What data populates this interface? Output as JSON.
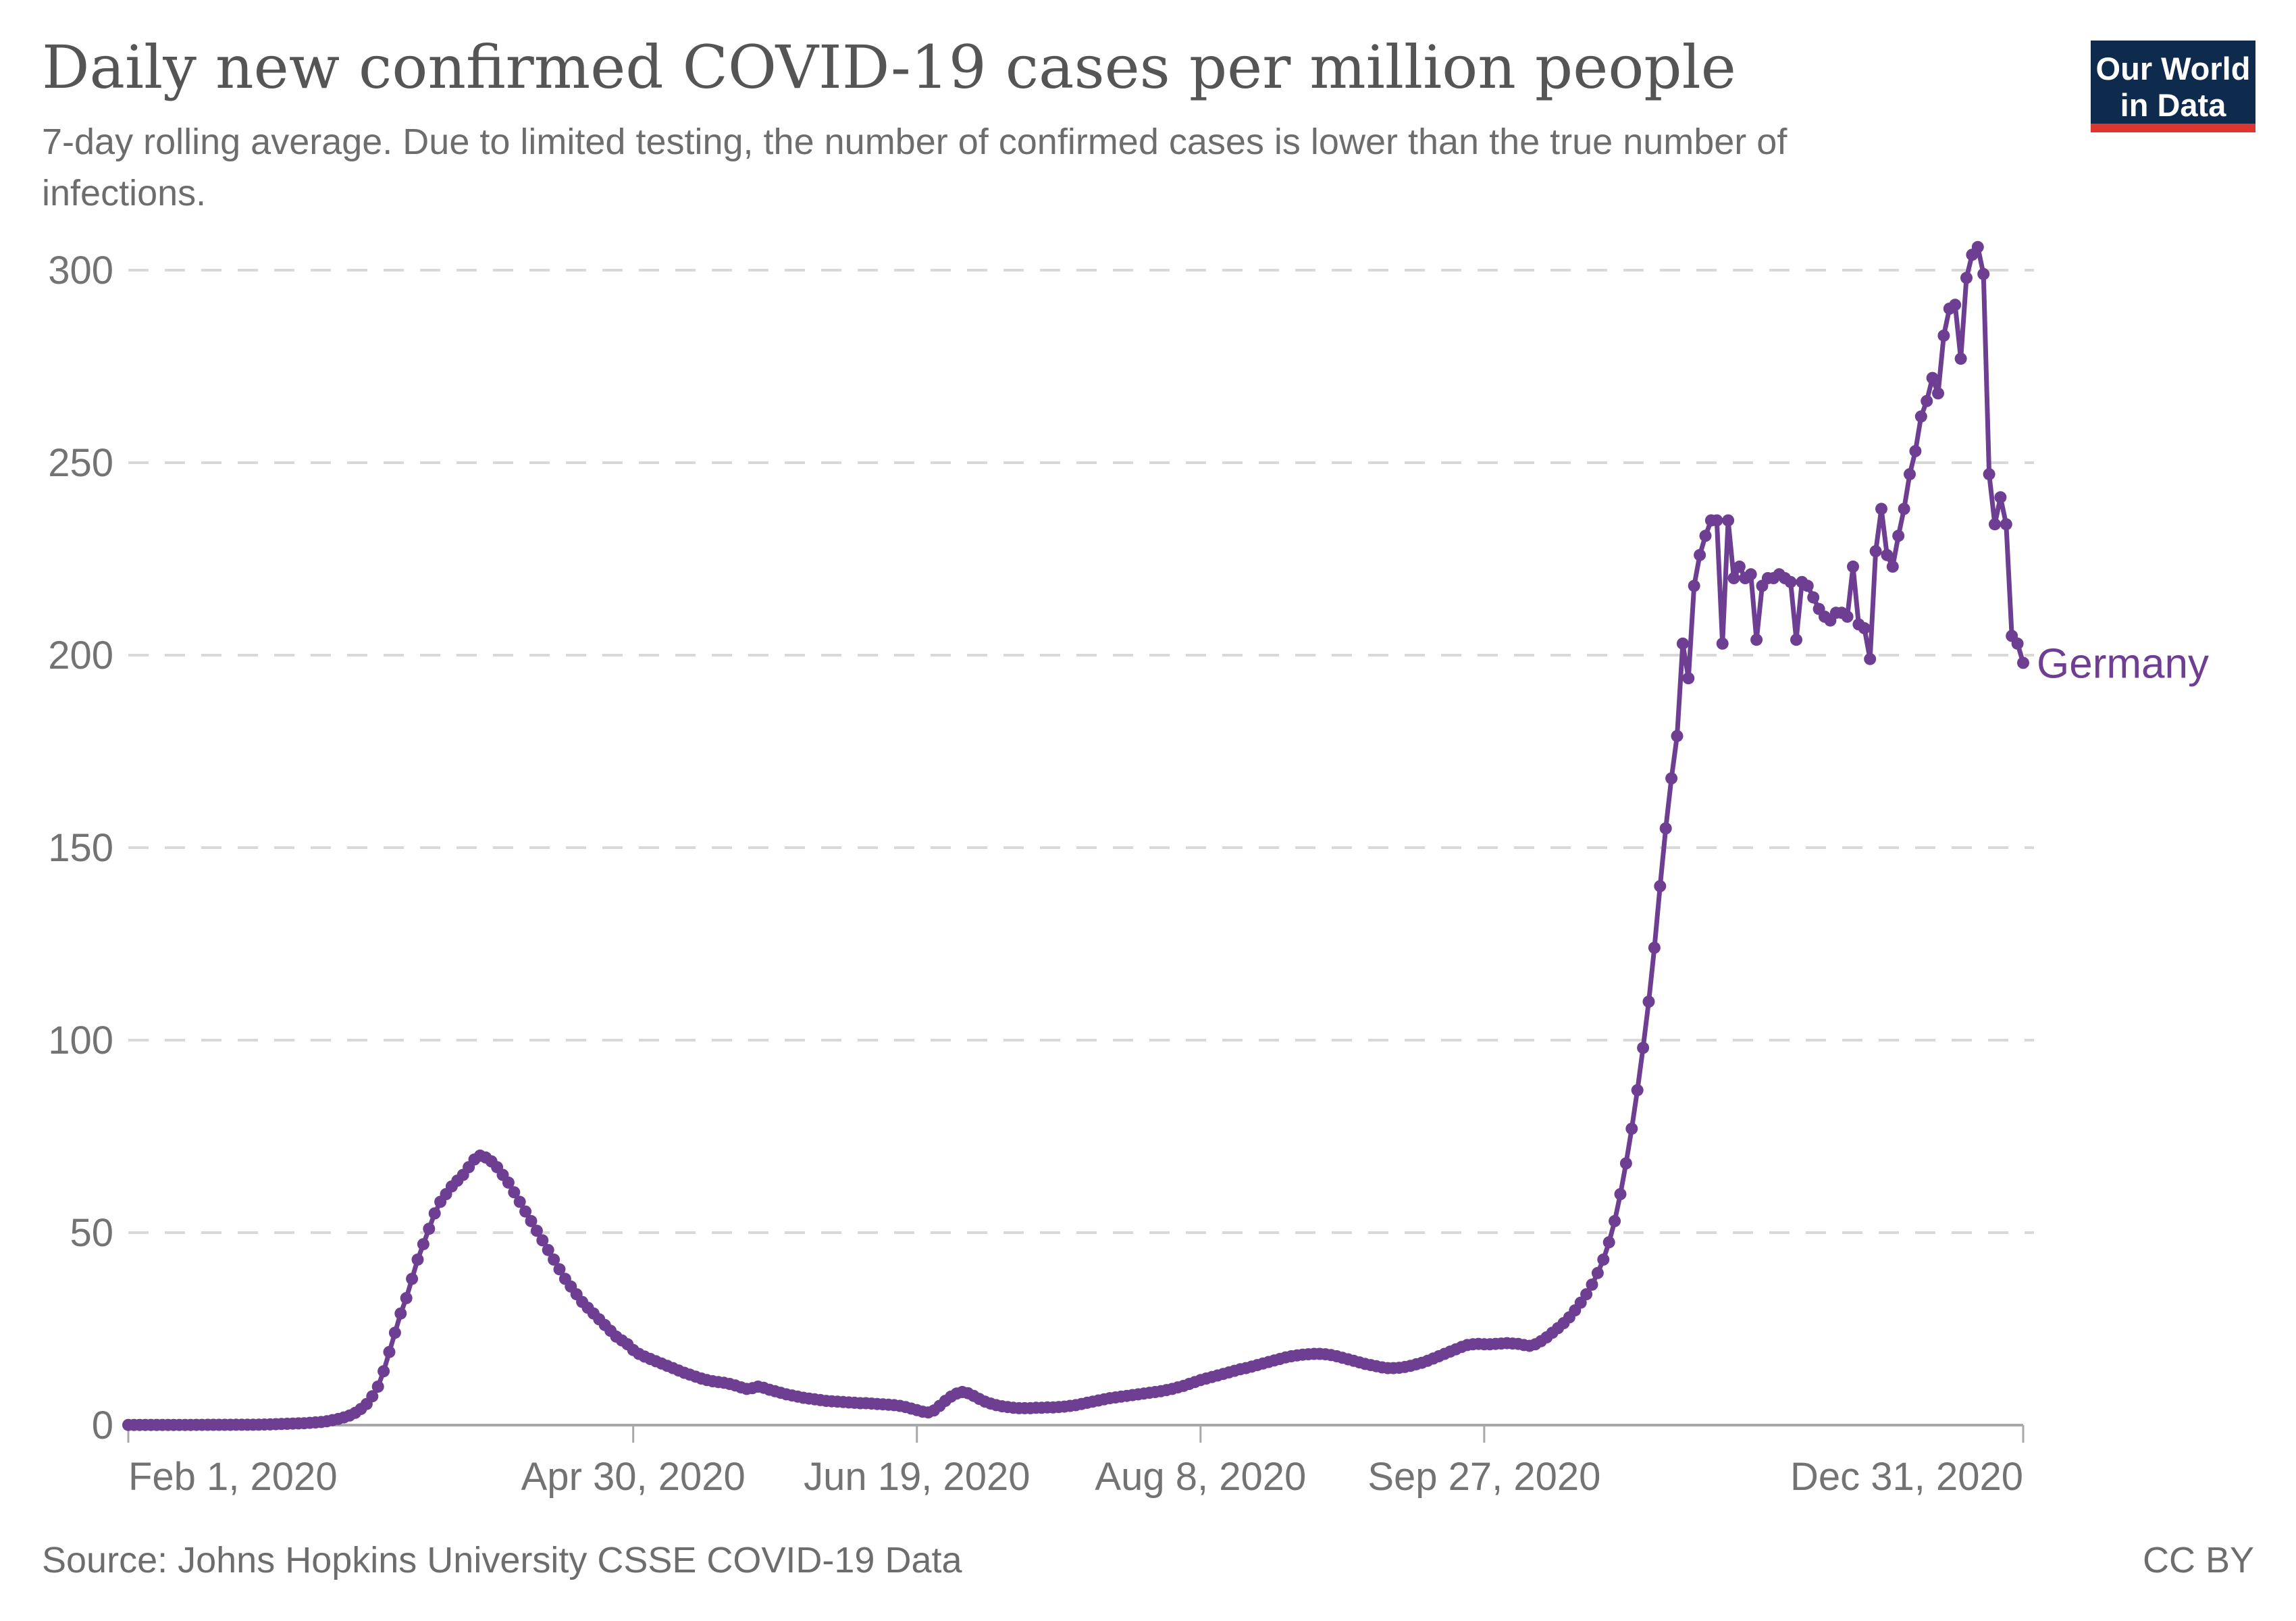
{
  "header": {
    "title": "Daily new confirmed COVID-19 cases per million people",
    "subtitle_line1": "7-day rolling average. Due to limited testing, the number of confirmed cases is lower than the true number of",
    "subtitle_line2": "infections.",
    "logo": {
      "line1": "Our World",
      "line2": "in Data",
      "bg_color": "#0e2a4d",
      "accent_color": "#dd362e"
    }
  },
  "footer": {
    "source": "Source: Johns Hopkins University CSSE COVID-19 Data",
    "license": "CC BY"
  },
  "chart_data": {
    "type": "line",
    "series_label": "Germany",
    "color": "#6d3e91",
    "start_date": "Feb 1, 2020",
    "end_date": "Dec 31, 2020",
    "x_start_day": 0,
    "x_end_day": 334,
    "x_tick_days": [
      0,
      89,
      139,
      189,
      239,
      334
    ],
    "x_tick_labels": [
      "Feb 1, 2020",
      "Apr 30, 2020",
      "Jun 19, 2020",
      "Aug 8, 2020",
      "Sep 27, 2020",
      "Dec 31, 2020"
    ],
    "y_ticks": [
      0,
      50,
      100,
      150,
      200,
      250,
      300
    ],
    "ylim": [
      0,
      300
    ],
    "grid": true,
    "legend_position": "end-of-line-label",
    "values": [
      0.05,
      0.05,
      0.05,
      0.05,
      0.05,
      0.05,
      0.05,
      0.05,
      0.05,
      0.05,
      0.06,
      0.06,
      0.07,
      0.07,
      0.08,
      0.08,
      0.08,
      0.09,
      0.09,
      0.1,
      0.1,
      0.1,
      0.1,
      0.12,
      0.15,
      0.2,
      0.25,
      0.3,
      0.35,
      0.4,
      0.45,
      0.5,
      0.6,
      0.7,
      0.8,
      1,
      1.3,
      1.6,
      2,
      2.5,
      3.2,
      4.2,
      5.5,
      7.5,
      10,
      14,
      19,
      24,
      29,
      33,
      38,
      43,
      47,
      51,
      55,
      58,
      60,
      62,
      63.5,
      65,
      67,
      69,
      70,
      69.5,
      68.5,
      67,
      65,
      63,
      60.5,
      58,
      55.5,
      53,
      50.5,
      48,
      45.5,
      43,
      40.5,
      38,
      36,
      34,
      32,
      30.5,
      29,
      27.5,
      26,
      24.5,
      23,
      22,
      21,
      19.5,
      18.5,
      17.8,
      17.2,
      16.6,
      16,
      15.4,
      14.8,
      14.2,
      13.6,
      13.1,
      12.6,
      12.1,
      11.7,
      11.4,
      11.2,
      11,
      10.7,
      10.3,
      9.8,
      9.4,
      9.6,
      10,
      9.7,
      9.2,
      8.8,
      8.4,
      8,
      7.7,
      7.4,
      7.1,
      6.9,
      6.7,
      6.5,
      6.3,
      6.2,
      6.1,
      6,
      5.9,
      5.8,
      5.7,
      5.7,
      5.6,
      5.5,
      5.4,
      5.3,
      5.2,
      5,
      4.7,
      4.3,
      3.9,
      3.5,
      3.3,
      3.8,
      5,
      6.3,
      7.4,
      8.2,
      8.6,
      8.3,
      7.6,
      6.8,
      6.1,
      5.6,
      5.2,
      4.9,
      4.7,
      4.5,
      4.4,
      4.4,
      4.4,
      4.5,
      4.5,
      4.6,
      4.6,
      4.7,
      4.8,
      5,
      5.2,
      5.5,
      5.8,
      6.1,
      6.4,
      6.7,
      7,
      7.2,
      7.4,
      7.6,
      7.8,
      8,
      8.2,
      8.4,
      8.6,
      8.8,
      9.1,
      9.4,
      9.8,
      10.2,
      10.7,
      11.2,
      11.7,
      12.1,
      12.5,
      12.9,
      13.3,
      13.7,
      14.1,
      14.5,
      14.8,
      15.2,
      15.6,
      16,
      16.4,
      16.8,
      17.2,
      17.6,
      17.9,
      18.1,
      18.3,
      18.4,
      18.5,
      18.5,
      18.4,
      18.2,
      17.9,
      17.5,
      17.1,
      16.7,
      16.3,
      15.9,
      15.6,
      15.3,
      15,
      14.8,
      14.8,
      14.9,
      15.1,
      15.4,
      15.8,
      16.2,
      16.7,
      17.3,
      17.9,
      18.5,
      19.1,
      19.7,
      20.3,
      20.8,
      21,
      21.1,
      21,
      21,
      21.1,
      21.2,
      21.3,
      21.2,
      21.1,
      20.8,
      20.6,
      21,
      21.8,
      22.8,
      24,
      25.2,
      26.5,
      28,
      29.8,
      31.8,
      34,
      36.5,
      39.5,
      43,
      47.5,
      53,
      60,
      68,
      77,
      87,
      98,
      110,
      124,
      140,
      155,
      168,
      179,
      203,
      194,
      218,
      226,
      231,
      235,
      235,
      203,
      235,
      220,
      223,
      220,
      221,
      204,
      218,
      220,
      220,
      221,
      220,
      219,
      204,
      219,
      218,
      215,
      212,
      210,
      209,
      211,
      211,
      210,
      223,
      208,
      207,
      199,
      227,
      238,
      226,
      223,
      231,
      238,
      247,
      253,
      262,
      266,
      272,
      268,
      283,
      290,
      291,
      277,
      298,
      304,
      306,
      299,
      247,
      234,
      241,
      234,
      205,
      203,
      198
    ]
  }
}
